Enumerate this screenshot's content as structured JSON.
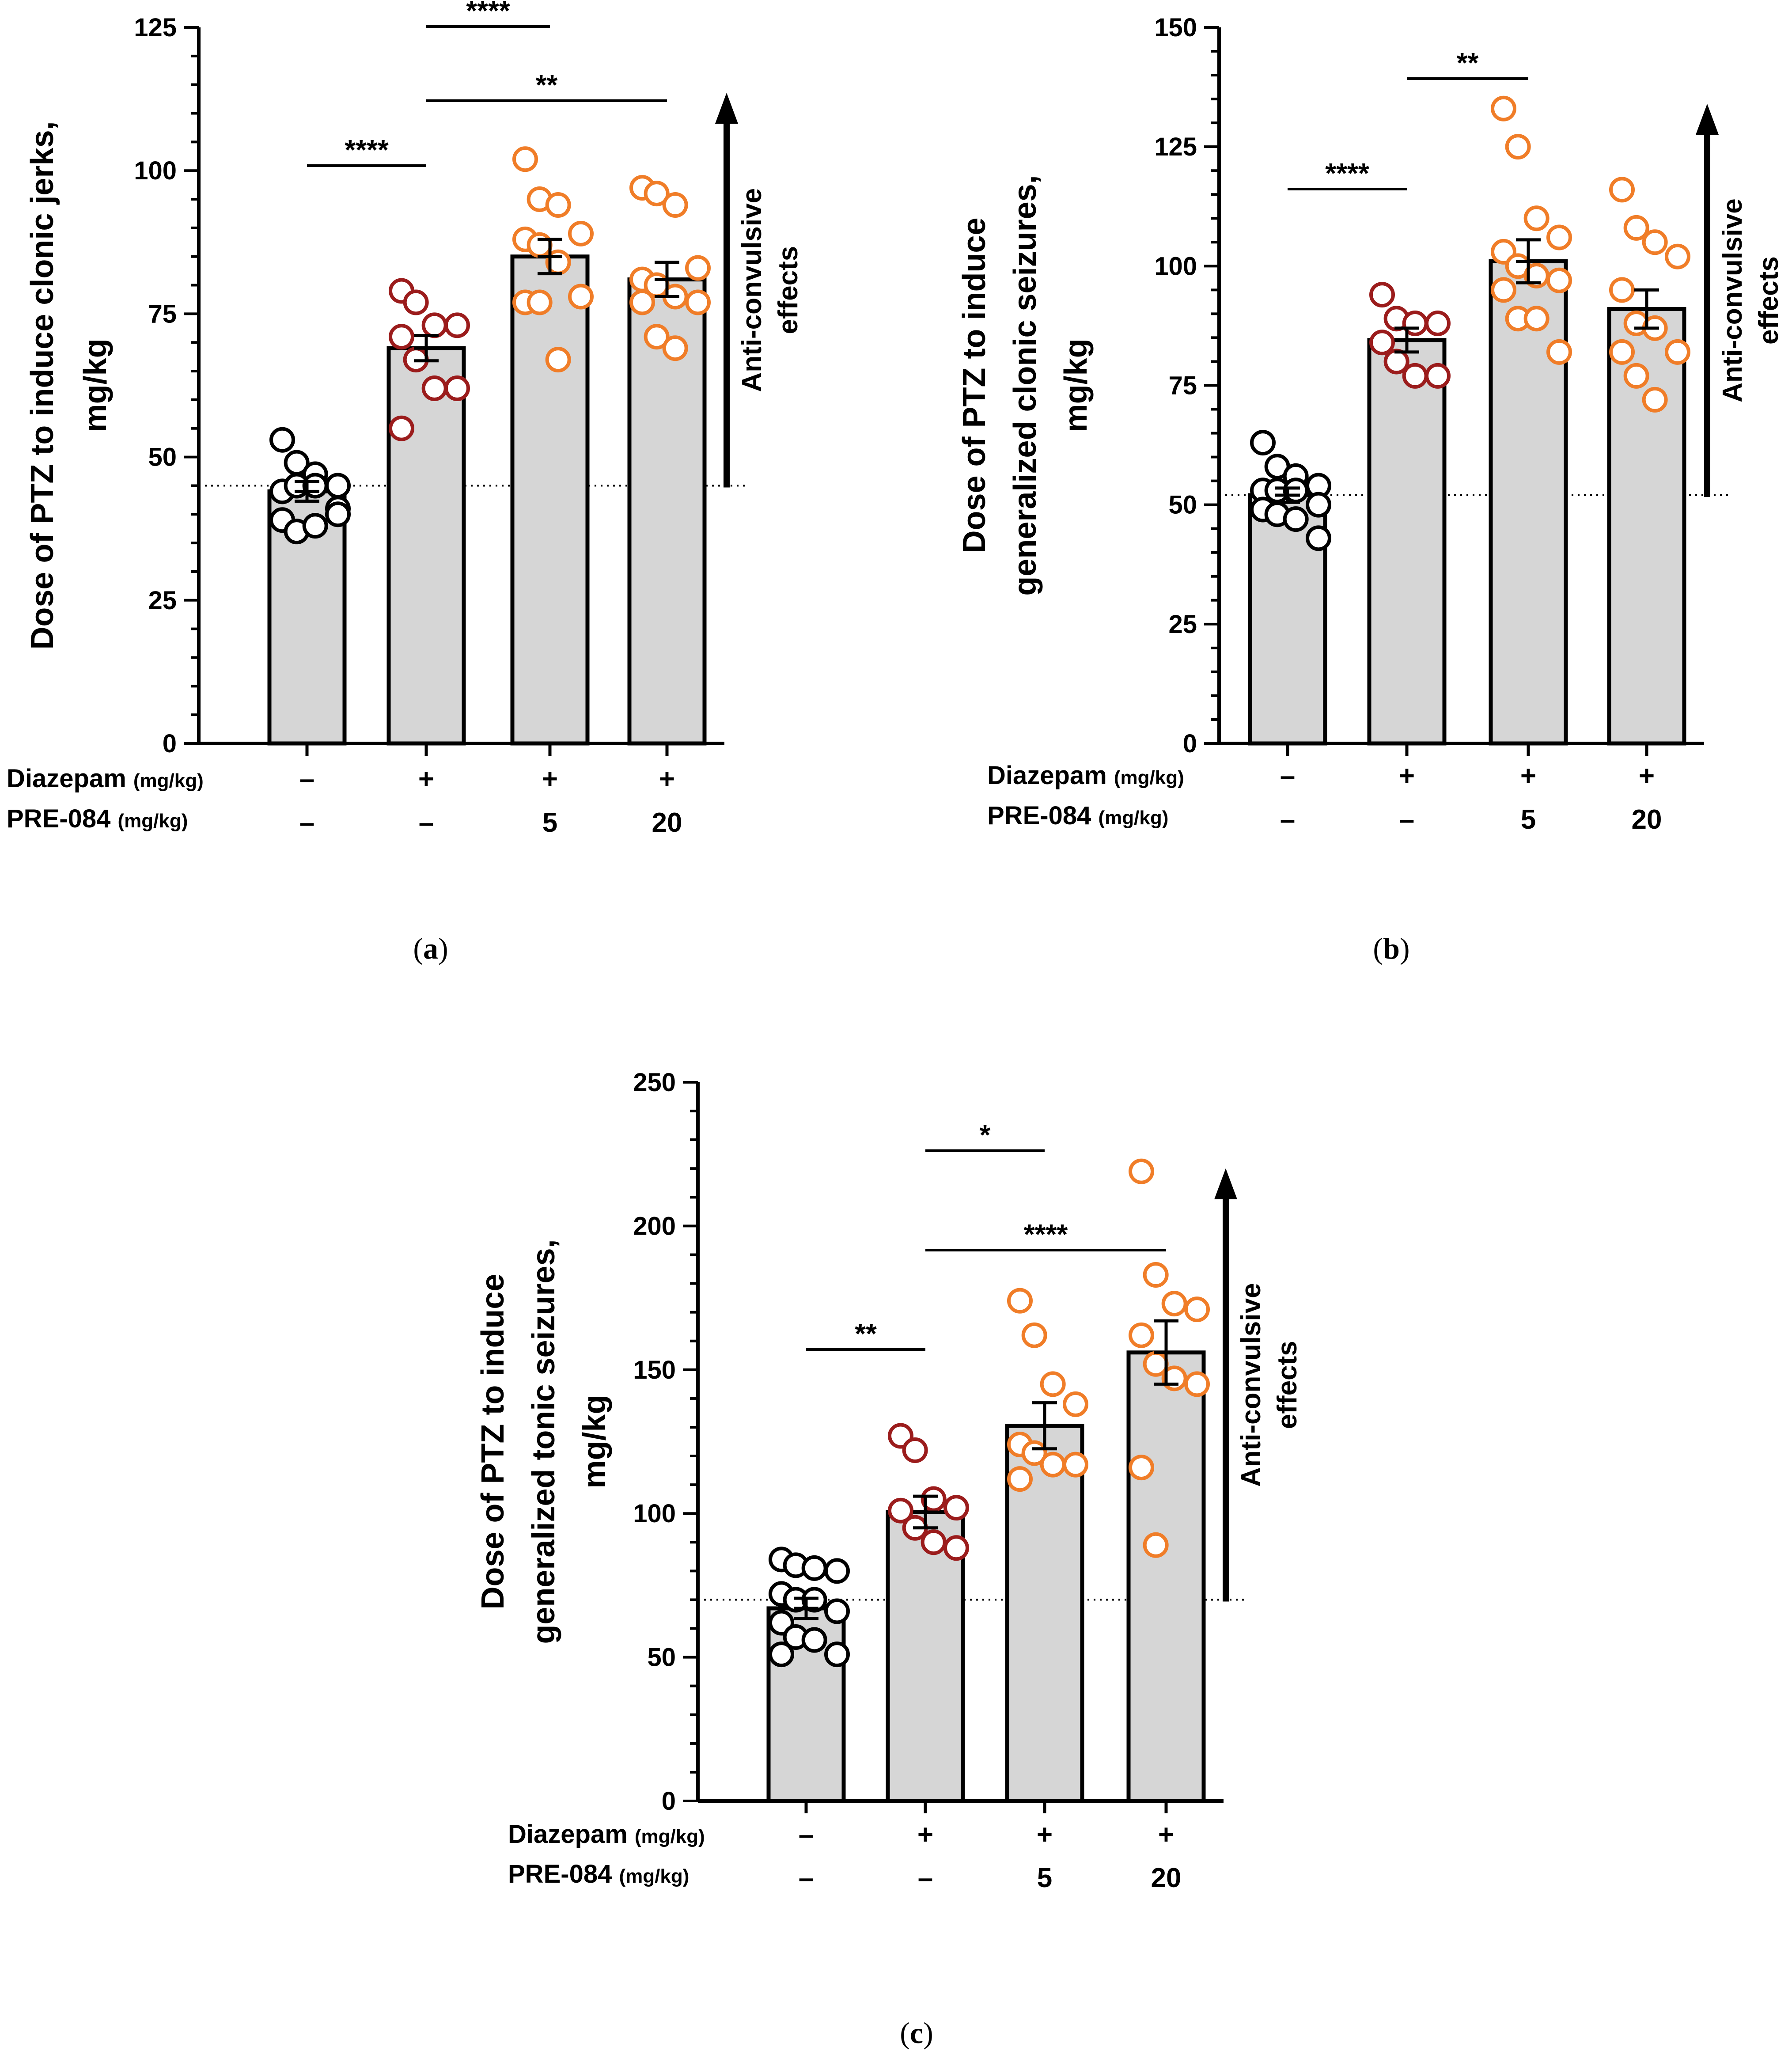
{
  "colors": {
    "bar_fill": "#d6d6d6",
    "vehicle_point": "#ffffff",
    "diazepam_point": "#9b1c1c",
    "combo_point": "#f07d28",
    "axis": "#000000"
  },
  "row_labels": {
    "diazepam": "Diazepam",
    "pre084": "PRE-084",
    "unit": "(mg/kg)"
  },
  "arrow_label": [
    "Anti-convulsive",
    "effects"
  ],
  "chart_data": [
    {
      "type": "bar",
      "panel": "a",
      "caption_letter": "a",
      "ylabel": [
        "Dose of PTZ to induce clonic jerks,",
        "mg/kg"
      ],
      "ylim": [
        0,
        125
      ],
      "yticks": [
        0,
        25,
        50,
        75,
        100,
        125
      ],
      "baseline": 45,
      "categories": [
        "vehicle",
        "diazepam",
        "diazepam+PRE-084 5",
        "diazepam+PRE-084 20"
      ],
      "diazepam": [
        "–",
        "+",
        "+",
        "+"
      ],
      "pre084": [
        "–",
        "–",
        "5",
        "20"
      ],
      "means": [
        44,
        69,
        85,
        81
      ],
      "sem": [
        1.7,
        2.2,
        3.0,
        3.0
      ],
      "points": [
        [
          53,
          49,
          47,
          45,
          44,
          45,
          45,
          41,
          39,
          37,
          38,
          40
        ],
        [
          79,
          77,
          73,
          73,
          71,
          67,
          62,
          62,
          55
        ],
        [
          102,
          95,
          94,
          89,
          88,
          87,
          84,
          78,
          77,
          77,
          67
        ],
        [
          97,
          96,
          94,
          83,
          81,
          80,
          78,
          77,
          77,
          71,
          69
        ]
      ],
      "significance": [
        {
          "from": 0,
          "to": 1,
          "label": "****"
        },
        {
          "from": 1,
          "to": 2,
          "label": "****"
        },
        {
          "from": 1,
          "to": 3,
          "label": "**"
        }
      ]
    },
    {
      "type": "bar",
      "panel": "b",
      "caption_letter": "b",
      "ylabel": [
        "Dose of PTZ to induce",
        "generalized clonic seizures,",
        "mg/kg"
      ],
      "ylim": [
        0,
        150
      ],
      "yticks": [
        0,
        25,
        50,
        75,
        100,
        125,
        150
      ],
      "baseline": 52,
      "categories": [
        "vehicle",
        "diazepam",
        "diazepam+PRE-084 5",
        "diazepam+PRE-084 20"
      ],
      "diazepam": [
        "–",
        "+",
        "+",
        "+"
      ],
      "pre084": [
        "–",
        "–",
        "5",
        "20"
      ],
      "means": [
        52,
        84.5,
        101,
        91
      ],
      "sem": [
        1.5,
        2.5,
        4.5,
        4.0
      ],
      "points": [
        [
          63,
          58,
          56,
          54,
          53,
          53,
          53,
          50,
          49,
          48,
          47,
          43
        ],
        [
          94,
          89,
          88,
          88,
          84,
          80,
          77,
          77
        ],
        [
          133,
          125,
          110,
          106,
          103,
          100,
          98,
          97,
          95,
          89,
          89,
          82
        ],
        [
          116,
          108,
          105,
          102,
          95,
          88,
          87,
          82,
          82,
          77,
          72
        ]
      ],
      "significance": [
        {
          "from": 0,
          "to": 1,
          "label": "****"
        },
        {
          "from": 1,
          "to": 2,
          "label": "**"
        }
      ]
    },
    {
      "type": "bar",
      "panel": "c",
      "caption_letter": "c",
      "ylabel": [
        "Dose of PTZ to induce",
        "generalized tonic seizures,",
        "mg/kg"
      ],
      "ylim": [
        0,
        250
      ],
      "yticks": [
        0,
        50,
        100,
        150,
        200,
        250
      ],
      "baseline": 70,
      "categories": [
        "vehicle",
        "diazepam",
        "diazepam+PRE-084 5",
        "diazepam+PRE-084 20"
      ],
      "diazepam": [
        "–",
        "+",
        "+",
        "+"
      ],
      "pre084": [
        "–",
        "–",
        "5",
        "20"
      ],
      "means": [
        67,
        100.5,
        130.5,
        156
      ],
      "sem": [
        3.5,
        5.5,
        8.0,
        11.0
      ],
      "points": [
        [
          84,
          82,
          81,
          80,
          72,
          70,
          70,
          66,
          62,
          57,
          56,
          51,
          51
        ],
        [
          127,
          122,
          105,
          102,
          101,
          95,
          90,
          88
        ],
        [
          174,
          162,
          145,
          138,
          124,
          121,
          117,
          117,
          112
        ],
        [
          219,
          183,
          173,
          171,
          162,
          152,
          147,
          145,
          116,
          89
        ]
      ],
      "significance": [
        {
          "from": 0,
          "to": 1,
          "label": "**"
        },
        {
          "from": 1,
          "to": 2,
          "label": "*"
        },
        {
          "from": 1,
          "to": 3,
          "label": "****"
        }
      ]
    }
  ]
}
